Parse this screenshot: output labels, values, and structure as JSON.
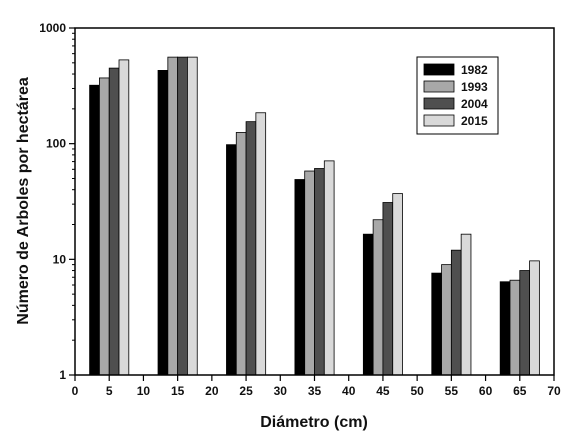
{
  "chart_data": {
    "type": "bar",
    "xlabel": "Diámetro (cm)",
    "ylabel": "Número de Arboles por hectárea",
    "y_scale": "log",
    "ylim": [
      1,
      1000
    ],
    "xlim": [
      0,
      70
    ],
    "x_ticks": [
      0,
      5,
      10,
      15,
      20,
      25,
      30,
      35,
      40,
      45,
      50,
      55,
      60,
      65,
      70
    ],
    "y_ticks": [
      1,
      10,
      100,
      1000
    ],
    "x_tick_labels": [
      "0",
      "5",
      "10",
      "15",
      "20",
      "25",
      "30",
      "35",
      "40",
      "45",
      "50",
      "55",
      "60",
      "65",
      "70"
    ],
    "y_tick_labels": [
      "1",
      "10",
      "100",
      "1000"
    ],
    "categories": [
      5,
      15,
      25,
      35,
      45,
      55,
      65
    ],
    "legend_position": "top-right",
    "grid": false,
    "series": [
      {
        "name": "1982",
        "color": "#000000",
        "values": [
          320,
          430,
          98,
          49,
          16.5,
          7.6,
          6.4
        ]
      },
      {
        "name": "1993",
        "color": "#a8a8a8",
        "values": [
          370,
          560,
          125,
          58,
          22,
          9,
          6.6
        ]
      },
      {
        "name": "2004",
        "color": "#4f4f4f",
        "values": [
          450,
          560,
          155,
          61,
          31,
          12,
          8
        ]
      },
      {
        "name": "2015",
        "color": "#d9d9d9",
        "values": [
          530,
          560,
          185,
          71,
          37,
          16.5,
          9.7
        ]
      }
    ]
  }
}
